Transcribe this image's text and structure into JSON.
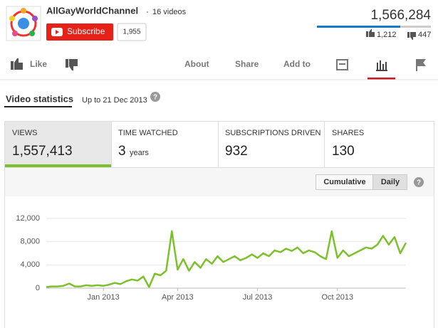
{
  "header": {
    "channel": "AllGayWorldChannel",
    "videos": "16 videos",
    "subscribe": "Subscribe",
    "subscribers": "1,955",
    "views": "1,566,284",
    "likes": "1,212",
    "dislikes": "447"
  },
  "nav": {
    "like": "Like",
    "tabs": [
      "About",
      "Share",
      "Add to"
    ]
  },
  "stats": {
    "tab": "Video statistics",
    "range": "Up to 21 Dec 2013",
    "help": "?",
    "metrics": [
      {
        "label": "VIEWS",
        "value": "1,557,413"
      },
      {
        "label": "TIME WATCHED",
        "value": "3",
        "unit": "years"
      },
      {
        "label": "SUBSCRIPTIONS DRIVEN",
        "value": "932"
      },
      {
        "label": "SHARES",
        "value": "130"
      }
    ],
    "buttons": [
      "Cumulative",
      "Daily"
    ]
  },
  "chart_data": {
    "type": "line",
    "color": "#7cc12b",
    "grid": true,
    "categories": [
      null,
      null,
      null,
      null,
      null,
      null,
      null,
      null,
      null,
      null,
      "Jan 2013",
      null,
      null,
      null,
      null,
      null,
      null,
      null,
      null,
      null,
      null,
      null,
      null,
      "Apr 2013",
      null,
      null,
      null,
      null,
      null,
      null,
      null,
      null,
      null,
      null,
      null,
      null,
      null,
      "Jul 2013",
      null,
      null,
      null,
      null,
      null,
      null,
      null,
      null,
      null,
      null,
      null,
      null,
      null,
      "Oct 2013",
      null,
      null,
      null,
      null,
      null,
      null,
      null,
      null,
      null,
      null,
      null,
      null
    ],
    "values": [
      200,
      300,
      300,
      400,
      800,
      300,
      300,
      500,
      400,
      500,
      400,
      600,
      900,
      700,
      1200,
      1500,
      1300,
      2000,
      200,
      2500,
      2200,
      3000,
      9800,
      3200,
      5000,
      3000,
      4500,
      3500,
      5000,
      4200,
      5500,
      4500,
      5000,
      5500,
      4800,
      5200,
      5800,
      5200,
      6000,
      5500,
      6500,
      6200,
      6800,
      6400,
      7000,
      6000,
      6500,
      6200,
      5500,
      5000,
      9800,
      5200,
      6500,
      5500,
      6000,
      6500,
      7000,
      6800,
      7500,
      9000,
      7500,
      8800,
      6000,
      7800
    ],
    "ylim": [
      0,
      12000
    ],
    "yticks": [
      0,
      {
        "value": 4000,
        "label": "4,000"
      },
      {
        "value": 8000,
        "label": "8,000"
      },
      {
        "value": 12000,
        "label": "12,000"
      }
    ]
  }
}
